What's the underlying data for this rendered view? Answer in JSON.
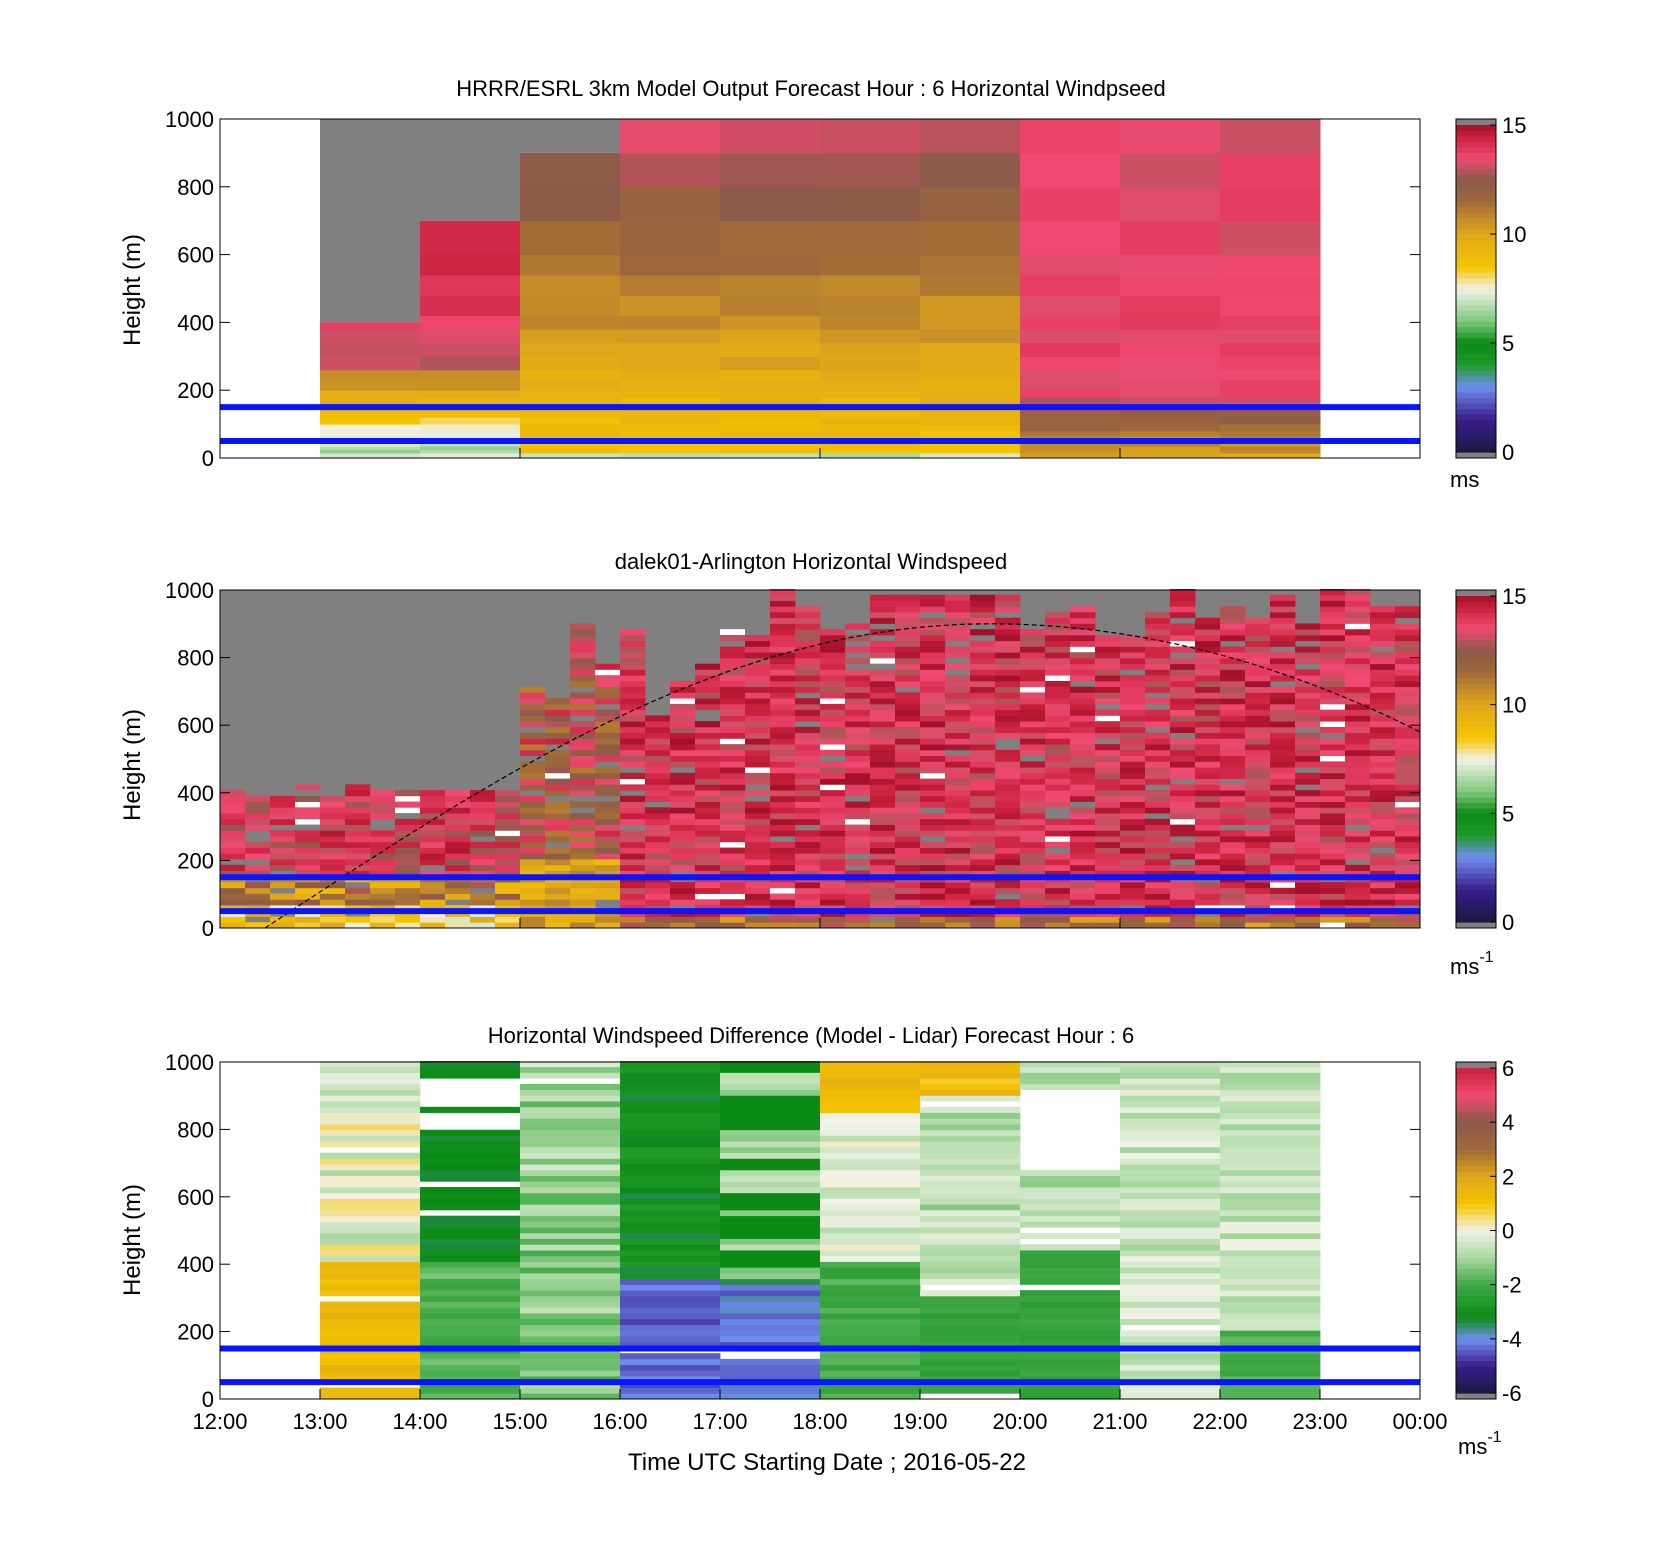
{
  "chart_data": [
    {
      "type": "heatmap",
      "title": "HRRR/ESRL 3km Model Output   Forecast Hour : 6 Horizontal Windpseed",
      "ylabel": "Height (m)",
      "xlabel": "",
      "ylim": [
        0,
        1000
      ],
      "xlim": [
        12,
        24
      ],
      "yticks": [
        "0",
        "200",
        "400",
        "600",
        "800",
        "1000"
      ],
      "colorbar": {
        "label": "ms",
        "ticks": [
          "0",
          "5",
          "10",
          "15"
        ],
        "range": [
          0,
          15
        ]
      },
      "reference_lines_m": [
        50,
        150
      ],
      "hourly_columns": [
        {
          "hour": 13,
          "top_m": 400
        },
        {
          "hour": 14,
          "top_m": 700
        },
        {
          "hour": 15,
          "top_m": 900
        },
        {
          "hour": 16,
          "top_m": 1000
        },
        {
          "hour": 17,
          "top_m": 1000
        },
        {
          "hour": 18,
          "top_m": 1000
        },
        {
          "hour": 19,
          "top_m": 1000
        },
        {
          "hour": 20,
          "top_m": 1000
        },
        {
          "hour": 21,
          "top_m": 1000
        },
        {
          "hour": 22,
          "top_m": 1000
        }
      ]
    },
    {
      "type": "heatmap",
      "title": "dalek01-Arlington  Horizontal Windspeed",
      "ylabel": "Height (m)",
      "xlabel": "",
      "ylim": [
        0,
        1000
      ],
      "xlim": [
        12,
        24
      ],
      "yticks": [
        "0",
        "200",
        "400",
        "600",
        "800",
        "1000"
      ],
      "colorbar": {
        "label": "ms",
        "label_sup": "-1",
        "ticks": [
          "0",
          "5",
          "10",
          "15"
        ],
        "range": [
          0,
          15
        ]
      },
      "reference_lines_m": [
        50,
        150
      ],
      "boundary_layer_curve": "dashed black arc rising from ~0 m at 12:30 to ~900 m near 19:30–20:00, falling to ~580 m at 24:00"
    },
    {
      "type": "heatmap",
      "title": "Horizontal Windspeed Difference (Model - Lidar) Forecast Hour : 6",
      "ylabel": "Height (m)",
      "xlabel": "Time UTC  Starting Date ; 2016-05-22",
      "ylim": [
        0,
        1000
      ],
      "xlim": [
        12,
        24
      ],
      "yticks": [
        "0",
        "200",
        "400",
        "600",
        "800",
        "1000"
      ],
      "xticks": [
        "12:00",
        "13:00",
        "14:00",
        "15:00",
        "16:00",
        "17:00",
        "18:00",
        "19:00",
        "20:00",
        "21:00",
        "22:00",
        "23:00",
        "00:00"
      ],
      "colorbar": {
        "label": "ms",
        "label_sup": "-1",
        "ticks": [
          "-6",
          "-4",
          "-2",
          "0",
          "2",
          "4",
          "6"
        ],
        "range": [
          -6,
          6
        ]
      },
      "reference_lines_m": [
        50,
        150
      ]
    }
  ]
}
